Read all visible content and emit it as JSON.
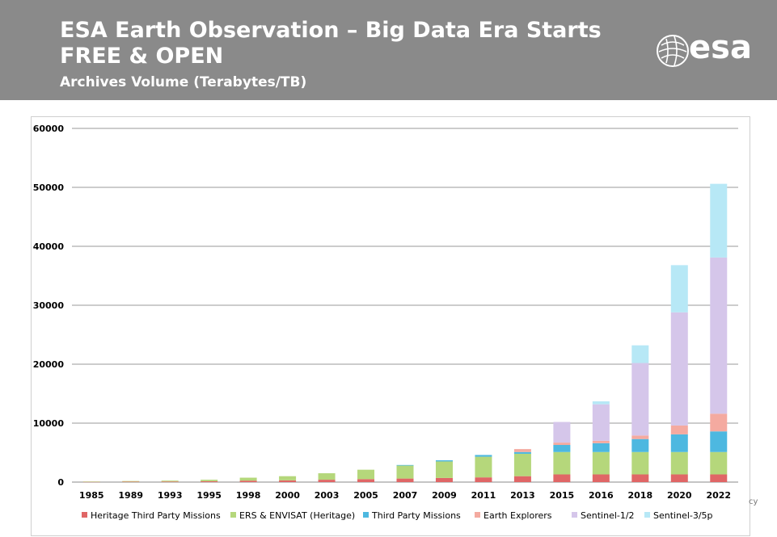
{
  "header": {
    "title_line1": "ESA Earth Observation – Big Data Era Starts",
    "title_line2": "FREE & OPEN",
    "subtitle": "Archives Volume (Terabytes/TB)",
    "logo_text": "esa",
    "background_color": "#8a8a8a"
  },
  "corner_text": "cy",
  "chart_data": {
    "type": "bar",
    "stacked": true,
    "title": "",
    "xlabel": "",
    "ylabel": "",
    "ylim": [
      0,
      60000
    ],
    "yticks": [
      0,
      10000,
      20000,
      30000,
      40000,
      50000,
      60000
    ],
    "grid": true,
    "legend_position": "bottom",
    "categories": [
      "1985",
      "1989",
      "1993",
      "1995",
      "1998",
      "2000",
      "2003",
      "2005",
      "2007",
      "2009",
      "2011",
      "2013",
      "2015",
      "2016",
      "2018",
      "2020",
      "2022"
    ],
    "series": [
      {
        "name": "Heritage Third Party Missions",
        "color": "#e06666",
        "values": [
          50,
          80,
          100,
          150,
          250,
          300,
          400,
          500,
          600,
          700,
          800,
          1000,
          1300,
          1300,
          1300,
          1300,
          1300
        ]
      },
      {
        "name": "ERS & ENVISAT (Heritage)",
        "color": "#b5d77b",
        "values": [
          50,
          100,
          150,
          250,
          500,
          700,
          1100,
          1600,
          2200,
          2800,
          3500,
          3800,
          3800,
          3800,
          3800,
          3800,
          3800
        ]
      },
      {
        "name": "Third Party Missions",
        "color": "#4db8e0",
        "values": [
          0,
          0,
          0,
          0,
          0,
          0,
          0,
          0,
          100,
          200,
          300,
          300,
          1200,
          1500,
          2200,
          3000,
          3500
        ]
      },
      {
        "name": "Earth Explorers",
        "color": "#f4aaa0",
        "values": [
          0,
          0,
          0,
          0,
          0,
          0,
          0,
          0,
          0,
          0,
          0,
          500,
          400,
          400,
          600,
          1500,
          3000
        ]
      },
      {
        "name": "Sentinel-1/2",
        "color": "#d5c6ea",
        "values": [
          0,
          0,
          0,
          0,
          0,
          0,
          0,
          0,
          0,
          0,
          0,
          0,
          3500,
          6200,
          12300,
          19200,
          26500
        ]
      },
      {
        "name": "Sentinel-3/5p",
        "color": "#b7e8f6",
        "values": [
          0,
          0,
          0,
          0,
          0,
          0,
          0,
          0,
          0,
          0,
          0,
          0,
          0,
          500,
          3000,
          8000,
          12500
        ]
      }
    ]
  }
}
